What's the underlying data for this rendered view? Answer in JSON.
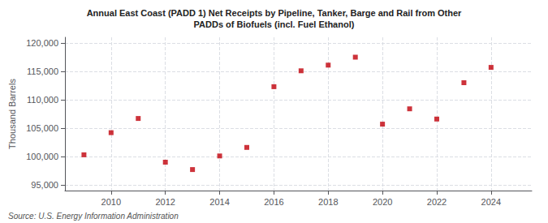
{
  "chart_data": {
    "type": "scatter",
    "title": "Annual East Coast (PADD 1) Net Receipts by Pipeline, Tanker, Barge and Rail from Other\nPADDs of Biofuels (incl. Fuel Ethanol)",
    "ylabel": "Thousand Barrels",
    "annotations": [
      "Source: U.S. Energy Information Administration"
    ],
    "x": [
      2009,
      2010,
      2011,
      2012,
      2013,
      2014,
      2015,
      2016,
      2017,
      2018,
      2019,
      2020,
      2021,
      2022,
      2023,
      2024
    ],
    "values": [
      100300,
      104200,
      106700,
      99000,
      97700,
      100100,
      101600,
      112300,
      115100,
      116100,
      117500,
      105700,
      108400,
      106600,
      113000,
      115700
    ],
    "color": "#c0000a",
    "marker": "square",
    "xlim": [
      2008.3,
      2025.5
    ],
    "xticks": [
      2010,
      2012,
      2014,
      2016,
      2018,
      2020,
      2022,
      2024
    ],
    "ylim": [
      94000,
      121000
    ],
    "yticks": [
      {
        "value": 95000,
        "label": "95,000"
      },
      {
        "value": 100000,
        "label": "100,000"
      },
      {
        "value": 105000,
        "label": "105,000"
      },
      {
        "value": 110000,
        "label": "110,000"
      },
      {
        "value": 115000,
        "label": "115,000"
      },
      {
        "value": 120000,
        "label": "120,000"
      }
    ],
    "grid": true
  }
}
